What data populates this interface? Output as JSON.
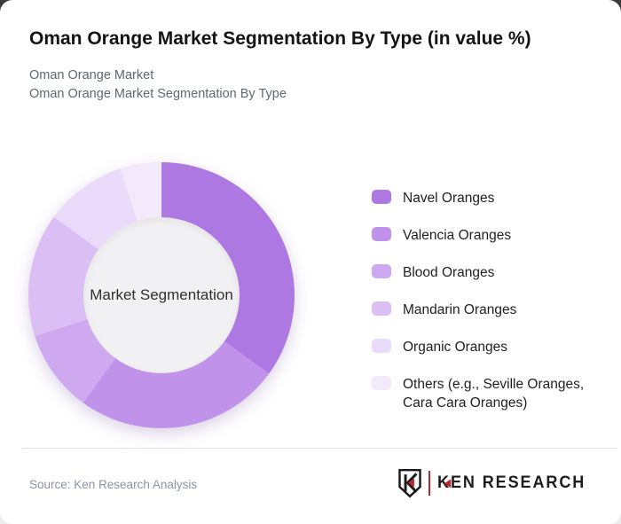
{
  "header": {
    "title": "Oman Orange Market Segmentation By Type (in value %)",
    "subtitle_line1": "Oman Orange Market",
    "subtitle_line2": "Oman Orange Market Segmentation By Type"
  },
  "chart_data": {
    "type": "pie",
    "style": "donut",
    "title": "Oman Orange Market Segmentation By Type (in value %)",
    "center_label": "Market Segmentation",
    "unit": "percent of value",
    "start_angle_deg": 0,
    "direction": "clockwise",
    "legend_position": "right",
    "data_labels_shown": false,
    "categories": [
      "Navel Oranges",
      "Valencia Oranges",
      "Blood Oranges",
      "Mandarin Oranges",
      "Organic Oranges",
      "Others (e.g., Seville Oranges, Cara Cara Oranges)"
    ],
    "values": [
      35,
      25,
      10,
      15,
      10,
      5
    ],
    "colors": [
      "#ad78e2",
      "#c092e9",
      "#cfa9ef",
      "#dbbff4",
      "#e9dbf9",
      "#f2eafb"
    ],
    "hole_color": "#f1f0f2"
  },
  "footer": {
    "source": "Source: Ken Research Analysis",
    "logo": {
      "brand_first_letter": "K",
      "brand_rest": "EN RESEARCH",
      "accent_color": "#c0272d"
    }
  }
}
